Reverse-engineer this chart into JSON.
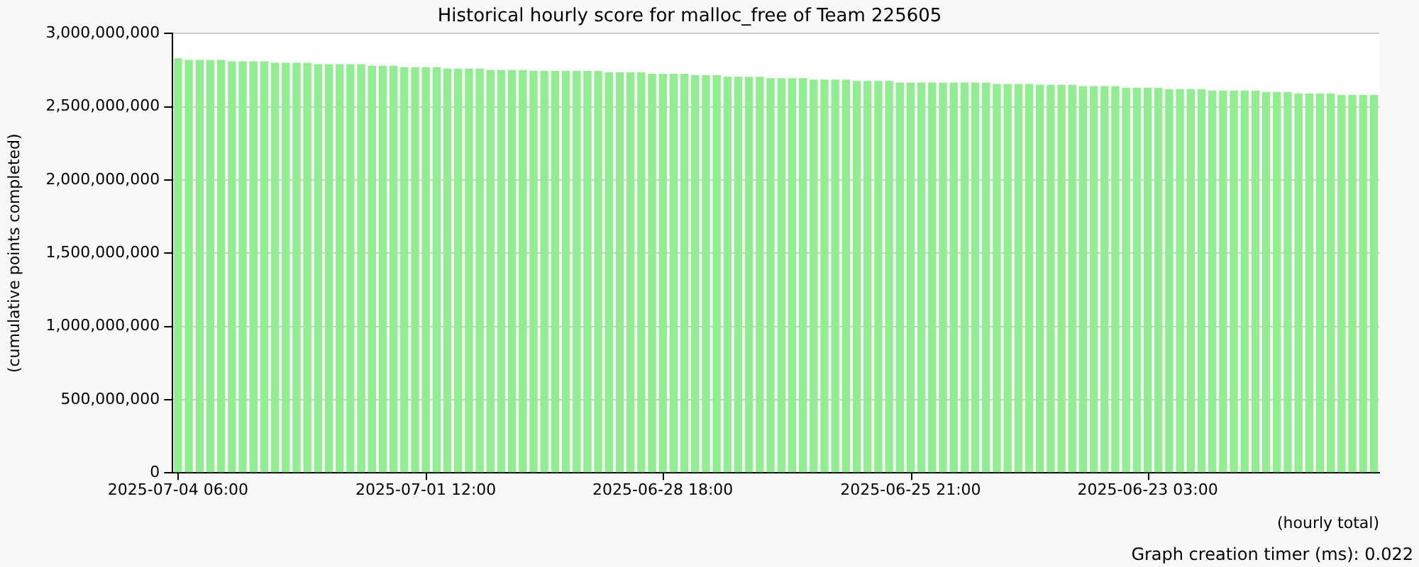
{
  "chart_data": {
    "type": "bar",
    "title": "Historical hourly score for malloc_free of Team 225605",
    "xlabel": "(hourly total)",
    "ylabel": "(cumulative points completed)",
    "annotations": [
      "Graph creation timer (ms): 0.022"
    ],
    "categories": [
      "2025-07-04 06:00",
      null,
      null,
      null,
      null,
      null,
      null,
      null,
      null,
      null,
      null,
      null,
      null,
      null,
      null,
      null,
      null,
      null,
      null,
      null,
      null,
      null,
      null,
      "2025-07-01 12:00",
      null,
      null,
      null,
      null,
      null,
      null,
      null,
      null,
      null,
      null,
      null,
      null,
      null,
      null,
      null,
      null,
      null,
      null,
      null,
      null,
      null,
      "2025-06-28 18:00",
      null,
      null,
      null,
      null,
      null,
      null,
      null,
      null,
      null,
      null,
      null,
      null,
      null,
      null,
      null,
      null,
      null,
      null,
      null,
      null,
      null,
      null,
      "2025-06-25 21:00",
      null,
      null,
      null,
      null,
      null,
      null,
      null,
      null,
      null,
      null,
      null,
      null,
      null,
      null,
      null,
      null,
      null,
      null,
      null,
      null,
      null,
      "2025-06-23 03:00",
      null,
      null,
      null,
      null,
      null,
      null,
      null,
      null,
      null,
      null,
      null,
      null,
      null,
      null,
      null,
      null,
      null,
      null,
      null,
      null,
      null
    ],
    "values": [
      2830000000,
      2820000000,
      2820000000,
      2820000000,
      2820000000,
      2810000000,
      2810000000,
      2810000000,
      2810000000,
      2800000000,
      2800000000,
      2800000000,
      2800000000,
      2790000000,
      2790000000,
      2790000000,
      2790000000,
      2790000000,
      2780000000,
      2780000000,
      2780000000,
      2770000000,
      2770000000,
      2770000000,
      2770000000,
      2760000000,
      2760000000,
      2760000000,
      2760000000,
      2750000000,
      2750000000,
      2750000000,
      2750000000,
      2745000000,
      2745000000,
      2745000000,
      2745000000,
      2745000000,
      2745000000,
      2745000000,
      2735000000,
      2735000000,
      2735000000,
      2735000000,
      2725000000,
      2725000000,
      2725000000,
      2725000000,
      2715000000,
      2715000000,
      2715000000,
      2705000000,
      2705000000,
      2705000000,
      2705000000,
      2695000000,
      2695000000,
      2695000000,
      2695000000,
      2685000000,
      2685000000,
      2685000000,
      2685000000,
      2675000000,
      2675000000,
      2675000000,
      2675000000,
      2665000000,
      2665000000,
      2665000000,
      2665000000,
      2665000000,
      2665000000,
      2665000000,
      2665000000,
      2665000000,
      2655000000,
      2655000000,
      2655000000,
      2655000000,
      2650000000,
      2650000000,
      2650000000,
      2650000000,
      2640000000,
      2640000000,
      2640000000,
      2640000000,
      2630000000,
      2630000000,
      2630000000,
      2630000000,
      2620000000,
      2620000000,
      2620000000,
      2620000000,
      2610000000,
      2610000000,
      2610000000,
      2610000000,
      2610000000,
      2600000000,
      2600000000,
      2600000000,
      2590000000,
      2590000000,
      2590000000,
      2590000000,
      2580000000,
      2580000000,
      2580000000,
      2580000000
    ],
    "color": "#90ee90",
    "ylim": [
      0,
      3000000000
    ],
    "yticks": [
      0,
      {
        "value": 500000000,
        "label": "500,000,000"
      },
      {
        "value": 1000000000,
        "label": "1,000,000,000"
      },
      {
        "value": 1500000000,
        "label": "1,500,000,000"
      },
      {
        "value": 2000000000,
        "label": "2,000,000,000"
      },
      {
        "value": 2500000000,
        "label": "2,500,000,000"
      },
      {
        "value": 3000000000,
        "label": "3,000,000,000"
      }
    ],
    "grid": "y",
    "legend": false
  }
}
